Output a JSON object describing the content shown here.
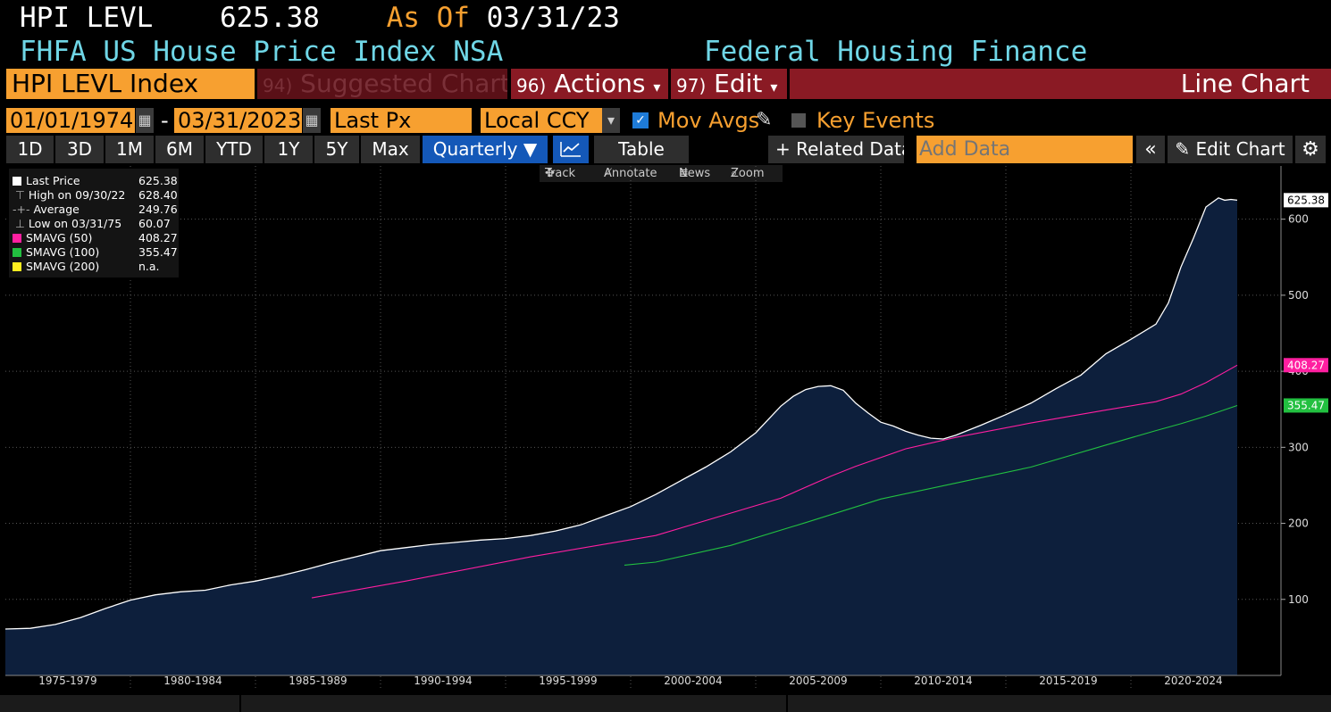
{
  "header": {
    "ticker": "HPI LEVL",
    "price": "625.38",
    "as_of_label": "As Of",
    "as_of_date": "03/31/23",
    "description": "FHFA US House Price Index NSA",
    "source": "Federal Housing Finance Agency"
  },
  "menu": {
    "security": "HPI LEVL Index",
    "suggested_num": "94)",
    "suggested": "Suggested Charts",
    "actions_num": "96)",
    "actions": "Actions",
    "edit_num": "97)",
    "edit": "Edit",
    "chart_type": "Line Chart",
    "caret": "▾"
  },
  "controls": {
    "start_date": "01/01/1974",
    "dash": "-",
    "end_date": "03/31/2023",
    "field": "Last Px",
    "currency": "Local CCY",
    "mov_avgs": "Mov Avgs",
    "key_events": "Key Events"
  },
  "periods": [
    "1D",
    "3D",
    "1M",
    "6M",
    "YTD",
    "1Y",
    "5Y",
    "Max"
  ],
  "frequency": "Quarterly ▼",
  "toolbar": {
    "table": "Table",
    "related": "+ Related Data",
    "add_data_placeholder": "Add Data",
    "collapse": "«",
    "edit_chart": "Edit Chart",
    "pencil": "✎"
  },
  "chart_tools": [
    "Track",
    "Annotate",
    "News",
    "Zoom"
  ],
  "legend": [
    {
      "label": "Last Price",
      "value": "625.38",
      "color": "#ffffff"
    },
    {
      "label": "High on 09/30/22",
      "value": "628.40",
      "color": ""
    },
    {
      "label": "Average",
      "value": "249.76",
      "color": ""
    },
    {
      "label": "Low on 03/31/75",
      "value": "60.07",
      "color": ""
    },
    {
      "label": "SMAVG (50)",
      "value": "408.27",
      "color": "#ff1fa0"
    },
    {
      "label": "SMAVG (100)",
      "value": "355.47",
      "color": "#22c040"
    },
    {
      "label": "SMAVG (200)",
      "value": "n.a.",
      "color": "#ffee20"
    }
  ],
  "colors": {
    "accent_orange": "#f7a030",
    "cyan": "#6fd6e6",
    "menu_red": "#8a1a24",
    "area_fill": "#0d1f3c",
    "price_line": "#ffffff",
    "sma50": "#ff1fa0",
    "sma100": "#22c040"
  },
  "chart_data": {
    "type": "area",
    "title": "",
    "xlabel": "",
    "ylabel": "",
    "x_tick_labels": [
      "1975-1979",
      "1980-1984",
      "1985-1989",
      "1990-1994",
      "1995-1999",
      "2000-2004",
      "2005-2009",
      "2010-2014",
      "2015-2019",
      "2020-2024"
    ],
    "y_ticks": [
      100,
      200,
      300,
      400,
      500,
      600
    ],
    "ylim": [
      0,
      670
    ],
    "xlim": [
      1974.0,
      2025.0
    ],
    "grid": true,
    "series": [
      {
        "name": "Last Price",
        "color": "#ffffff",
        "x": [
          1974.0,
          1975.0,
          1976.0,
          1977.0,
          1978.0,
          1979.0,
          1980.0,
          1981.0,
          1982.0,
          1983.0,
          1984.0,
          1985.0,
          1986.0,
          1987.0,
          1988.0,
          1989.0,
          1990.0,
          1991.0,
          1992.0,
          1993.0,
          1994.0,
          1995.0,
          1996.0,
          1997.0,
          1998.0,
          1999.0,
          2000.0,
          2001.0,
          2002.0,
          2003.0,
          2004.0,
          2005.0,
          2005.5,
          2006.0,
          2006.5,
          2007.0,
          2007.5,
          2008.0,
          2008.5,
          2009.0,
          2009.5,
          2010.0,
          2010.5,
          2011.0,
          2011.5,
          2012.0,
          2013.0,
          2014.0,
          2015.0,
          2016.0,
          2017.0,
          2018.0,
          2019.0,
          2020.0,
          2020.5,
          2021.0,
          2021.5,
          2022.0,
          2022.5,
          2022.75,
          2023.0,
          2023.25
        ],
        "y": [
          61,
          62,
          67,
          76,
          88,
          99,
          106,
          110,
          112,
          119,
          124,
          131,
          139,
          148,
          156,
          164,
          168,
          172,
          175,
          178,
          180,
          184,
          190,
          198,
          210,
          222,
          238,
          256,
          274,
          294,
          319,
          354,
          367,
          376,
          380,
          381,
          375,
          358,
          345,
          333,
          328,
          321,
          316,
          312,
          311,
          316,
          329,
          343,
          358,
          377,
          395,
          423,
          442,
          462,
          490,
          537,
          575,
          616,
          628,
          625,
          626,
          625
        ]
      },
      {
        "name": "SMAVG (50)",
        "color": "#ff1fa0",
        "x": [
          1986.25,
          1990.0,
          1995.0,
          2000.0,
          2005.0,
          2007.0,
          2008.0,
          2010.0,
          2012.0,
          2015.0,
          2018.0,
          2020.0,
          2021.0,
          2022.0,
          2023.25
        ],
        "y": [
          102,
          124,
          156,
          184,
          233,
          262,
          275,
          298,
          313,
          332,
          349,
          360,
          370,
          385,
          408
        ]
      },
      {
        "name": "SMAVG (100)",
        "color": "#22c040",
        "x": [
          1998.75,
          2000.0,
          2003.0,
          2006.0,
          2009.0,
          2012.0,
          2015.0,
          2018.0,
          2020.0,
          2021.0,
          2022.0,
          2023.25
        ],
        "y": [
          145,
          149,
          171,
          201,
          232,
          253,
          274,
          303,
          322,
          331,
          341,
          355
        ]
      }
    ],
    "last_value_labels": [
      {
        "value": "625.38",
        "color": "#ffffff"
      },
      {
        "value": "408.27",
        "color": "#ff1fa0"
      },
      {
        "value": "355.47",
        "color": "#22c040"
      }
    ]
  }
}
